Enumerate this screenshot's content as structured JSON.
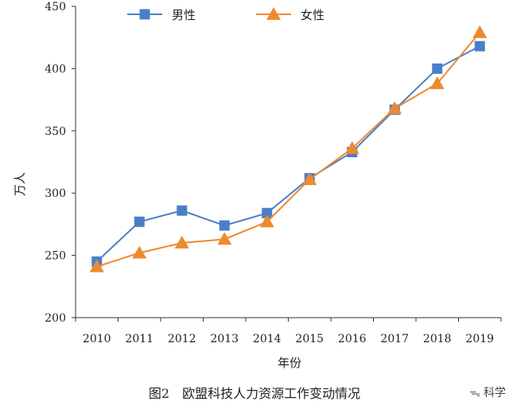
{
  "chart_data": {
    "type": "line",
    "categories": [
      "2010",
      "2011",
      "2012",
      "2013",
      "2014",
      "2015",
      "2016",
      "2017",
      "2018",
      "2019"
    ],
    "series": [
      {
        "name": "男性",
        "values": [
          245,
          277,
          286,
          274,
          284,
          312,
          333,
          367,
          400,
          418
        ],
        "color": "#4a7fc8",
        "marker": "square"
      },
      {
        "name": "女性",
        "values": [
          241,
          252,
          260,
          263,
          277,
          311,
          336,
          368,
          388,
          429
        ],
        "color": "#ed8a2f",
        "marker": "triangle"
      }
    ],
    "xlabel": "年份",
    "ylabel": "万人",
    "ylim": [
      200,
      450
    ],
    "yticks": [
      200,
      250,
      300,
      350,
      400,
      450
    ],
    "grid": false,
    "legend_position": "top"
  },
  "caption": "图2　欧盟科技人力资源工作变动情况",
  "watermark": {
    "text": "科学",
    "icon": "wechat-icon"
  }
}
